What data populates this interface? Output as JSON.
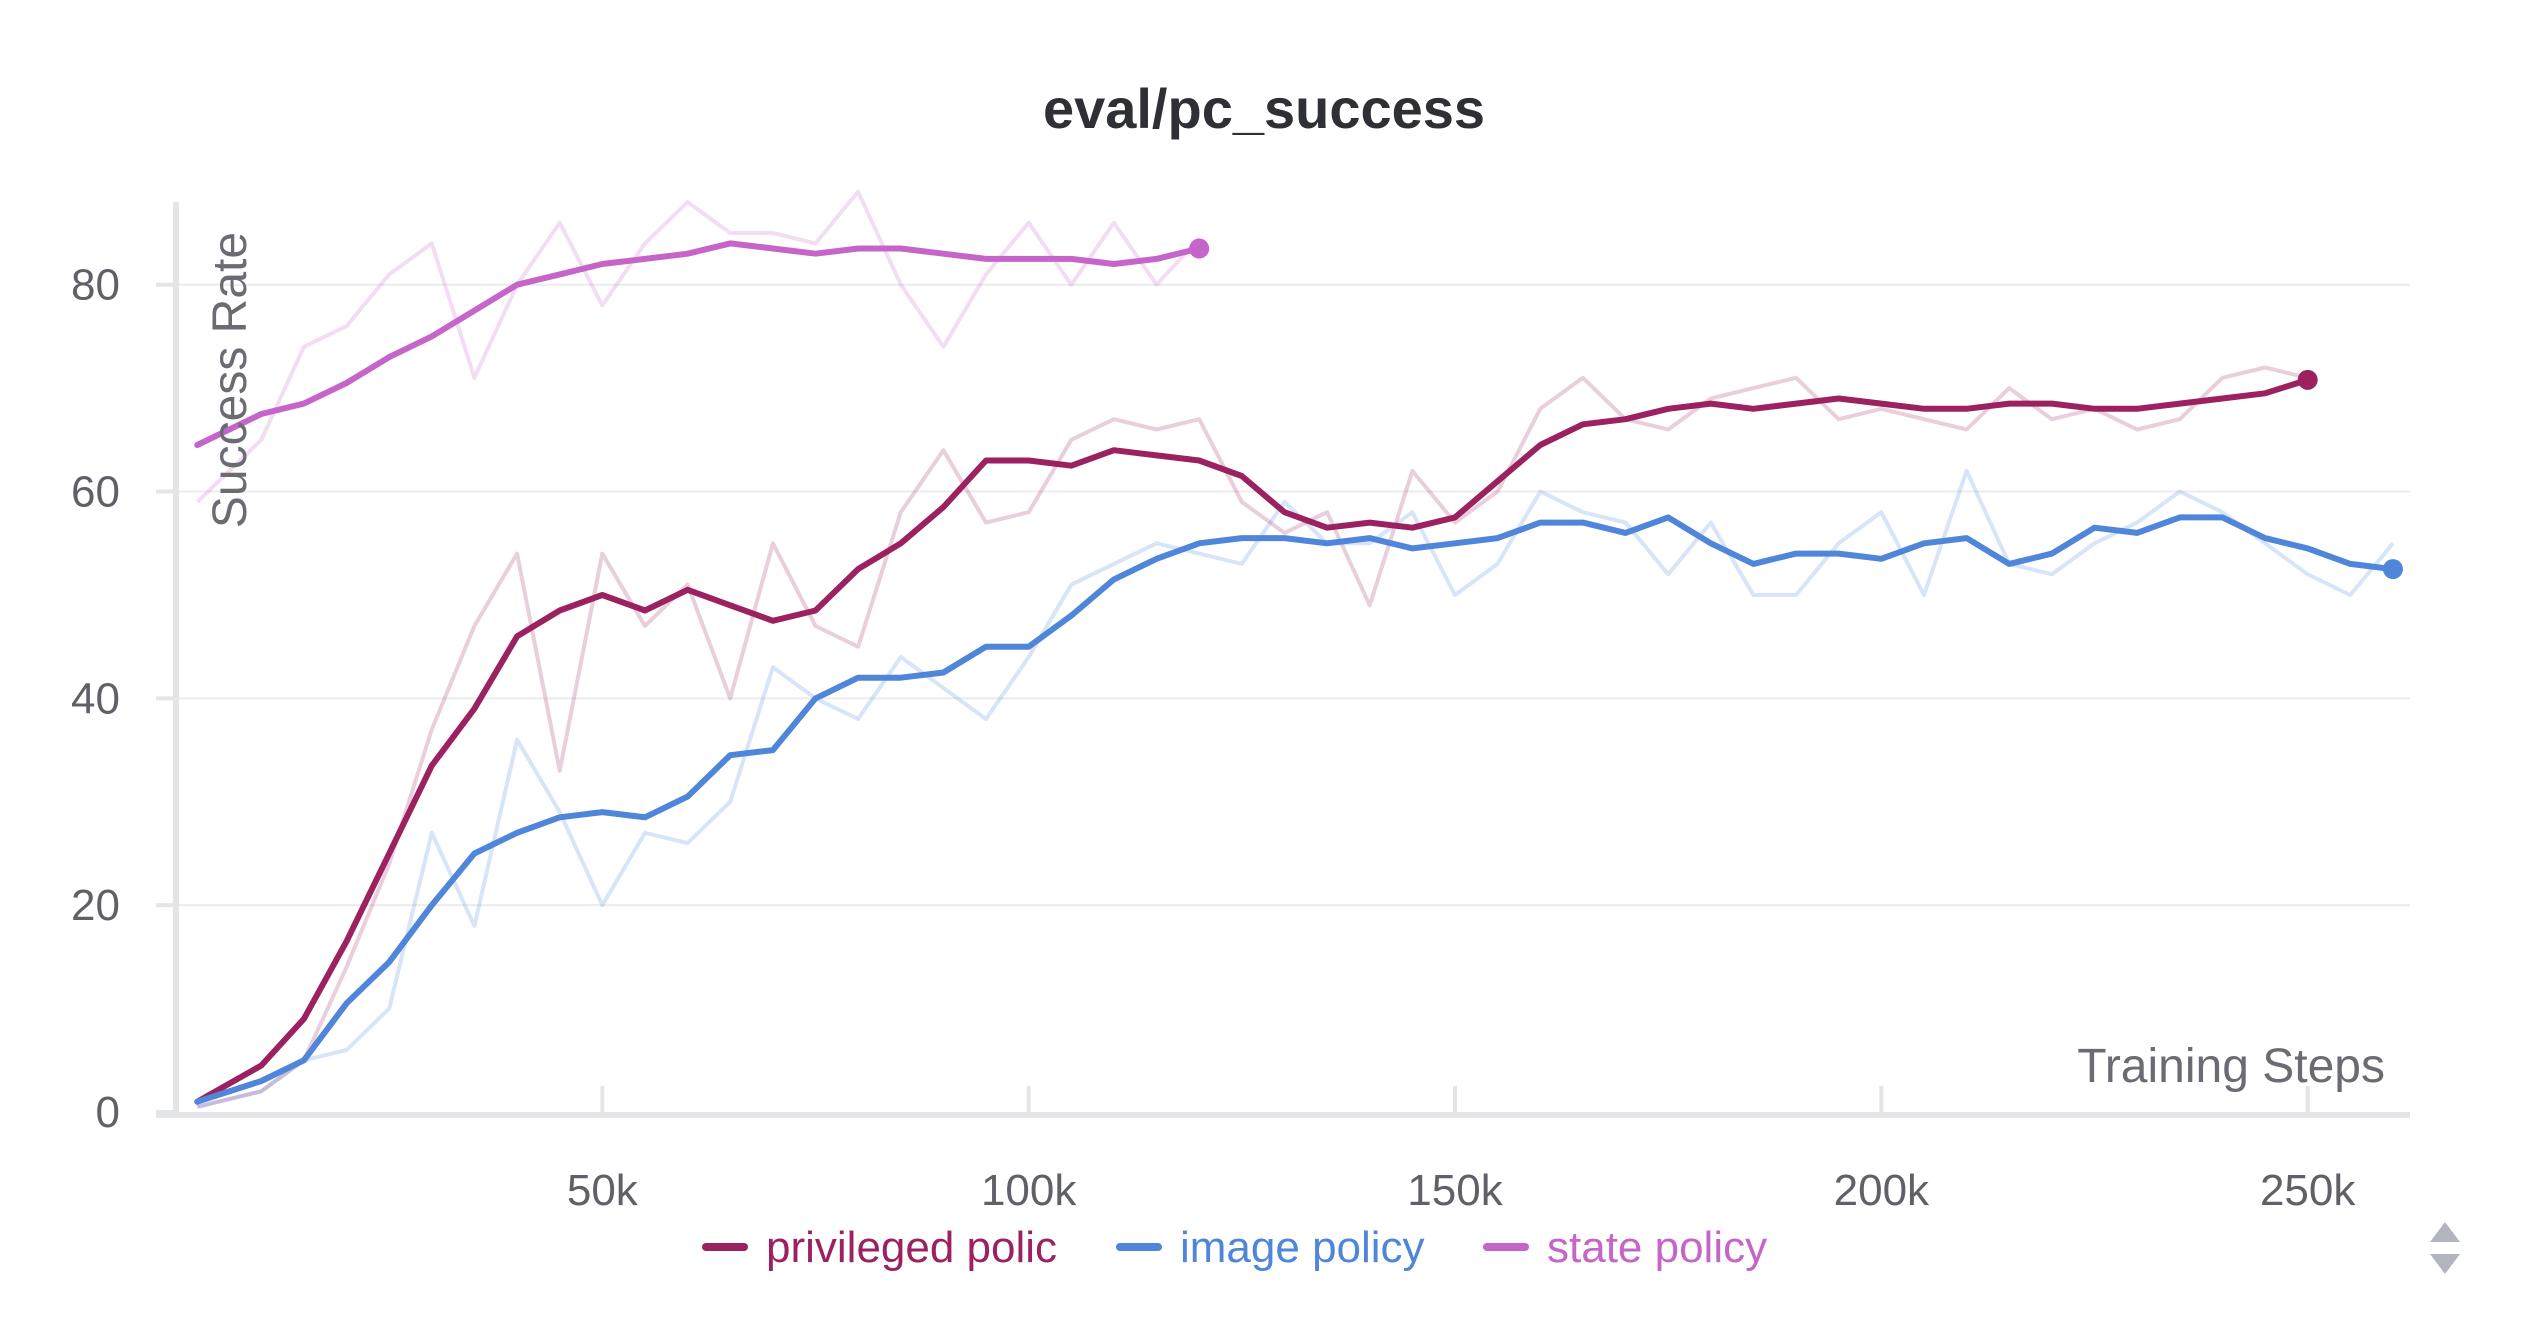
{
  "chart_data": {
    "type": "line",
    "title": "eval/pc_success",
    "xlabel": "Training Steps",
    "ylabel": "Success Rate",
    "xlim": [
      0,
      262000
    ],
    "ylim": [
      0,
      88
    ],
    "x_ticks": [
      50000,
      100000,
      150000,
      200000,
      250000
    ],
    "x_tick_labels": [
      "50k",
      "100k",
      "150k",
      "200k",
      "250k"
    ],
    "y_ticks": [
      0,
      20,
      40,
      60,
      80
    ],
    "y_tick_labels": [
      "0",
      "20",
      "40",
      "60",
      "80"
    ],
    "grid": true,
    "legend_position": "bottom",
    "series": [
      {
        "name": "privileged polic",
        "color": "#9c2160",
        "x": [
          2500,
          10000,
          15000,
          20000,
          25000,
          30000,
          35000,
          40000,
          45000,
          50000,
          55000,
          60000,
          65000,
          70000,
          75000,
          80000,
          85000,
          90000,
          95000,
          100000,
          105000,
          110000,
          115000,
          120000,
          125000,
          130000,
          135000,
          140000,
          145000,
          150000,
          155000,
          160000,
          165000,
          170000,
          175000,
          180000,
          185000,
          190000,
          195000,
          200000,
          205000,
          210000,
          215000,
          220000,
          225000,
          230000,
          235000,
          240000,
          245000,
          250000
        ],
        "smoothed": [
          1,
          4.5,
          9,
          16.5,
          25,
          33.5,
          39,
          46,
          48.5,
          50,
          48.5,
          50.5,
          49,
          47.5,
          48.5,
          52.5,
          55,
          58.5,
          63,
          63,
          62.5,
          64,
          63.5,
          63,
          61.5,
          58,
          56.5,
          57,
          56.5,
          57.5,
          61,
          64.5,
          66.5,
          67,
          68,
          68.5,
          68,
          68.5,
          69,
          68.5,
          68,
          68,
          68.5,
          68.5,
          68,
          68,
          68.5,
          69,
          69.5,
          70.8
        ],
        "raw": [
          0.5,
          2,
          5,
          14,
          24,
          37,
          47,
          54,
          33,
          54,
          47,
          51,
          40,
          55,
          47,
          45,
          58,
          64,
          57,
          58,
          65,
          67,
          66,
          67,
          59,
          56,
          58,
          49,
          62,
          57,
          60,
          68,
          71,
          67,
          66,
          69,
          70,
          71,
          67,
          68,
          67,
          66,
          70,
          67,
          68,
          66,
          67,
          71,
          72,
          71
        ]
      },
      {
        "name": "image policy",
        "color": "#4f86d9",
        "x": [
          2500,
          10000,
          15000,
          20000,
          25000,
          30000,
          35000,
          40000,
          45000,
          50000,
          55000,
          60000,
          65000,
          70000,
          75000,
          80000,
          85000,
          90000,
          95000,
          100000,
          105000,
          110000,
          115000,
          120000,
          125000,
          130000,
          135000,
          140000,
          145000,
          150000,
          155000,
          160000,
          165000,
          170000,
          175000,
          180000,
          185000,
          190000,
          195000,
          200000,
          205000,
          210000,
          215000,
          220000,
          225000,
          230000,
          235000,
          240000,
          245000,
          250000,
          255000,
          260000
        ],
        "smoothed": [
          1,
          3,
          5,
          10.5,
          14.5,
          20,
          25,
          27,
          28.5,
          29,
          28.5,
          30.5,
          34.5,
          35,
          40,
          42,
          42,
          42.5,
          45,
          45,
          48,
          51.5,
          53.5,
          55,
          55.5,
          55.5,
          55,
          55.5,
          54.5,
          55,
          55.5,
          57,
          57,
          56,
          57.5,
          55,
          53,
          54,
          54,
          53.5,
          55,
          55.5,
          53,
          54,
          56.5,
          56,
          57.5,
          57.5,
          55.5,
          54.5,
          53,
          52.5
        ],
        "raw": [
          0.5,
          2,
          5,
          6,
          10,
          27,
          18,
          36,
          29,
          20,
          27,
          26,
          30,
          43,
          40,
          38,
          44,
          41,
          38,
          44,
          51,
          53,
          55,
          54,
          53,
          59,
          55,
          55,
          58,
          50,
          53,
          60,
          58,
          57,
          52,
          57,
          50,
          50,
          55,
          58,
          50,
          62,
          53,
          52,
          55,
          57,
          60,
          58,
          55,
          52,
          50,
          55
        ]
      },
      {
        "name": "state policy",
        "color": "#c665c9",
        "x": [
          2500,
          10000,
          15000,
          20000,
          25000,
          30000,
          35000,
          40000,
          45000,
          50000,
          55000,
          60000,
          65000,
          70000,
          75000,
          80000,
          85000,
          90000,
          95000,
          100000,
          105000,
          110000,
          115000,
          120000
        ],
        "smoothed": [
          64.5,
          67.5,
          68.5,
          70.5,
          73,
          75,
          77.5,
          80,
          81,
          82,
          82.5,
          83,
          84,
          83.5,
          83,
          83.5,
          83.5,
          83,
          82.5,
          82.5,
          82.5,
          82,
          82.5,
          83.5
        ],
        "raw": [
          59,
          65,
          74,
          76,
          81,
          84,
          71,
          80,
          86,
          78,
          84,
          88,
          85,
          85,
          84,
          89,
          80,
          74,
          81,
          86,
          80,
          86,
          80,
          84.5
        ]
      }
    ]
  },
  "controls": {
    "scroll_icon": "up-down-arrows-icon"
  }
}
